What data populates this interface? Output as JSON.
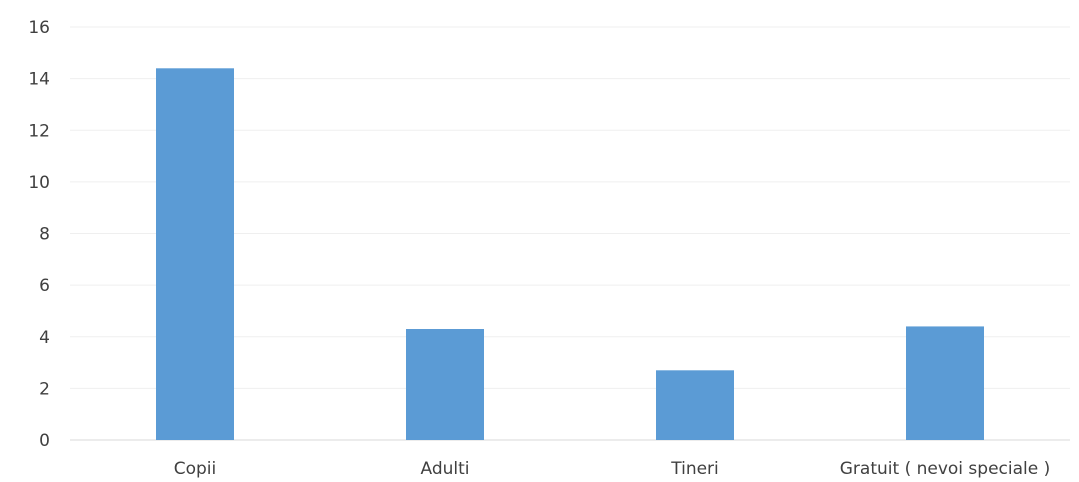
{
  "chart_data": {
    "type": "bar",
    "title": "",
    "xlabel": "",
    "ylabel": "",
    "categories": [
      "Copii",
      "Adulti",
      "Tineri",
      "Gratuit ( nevoi speciale )"
    ],
    "values": [
      14.4,
      4.3,
      2.7,
      4.4
    ],
    "ylim": [
      0,
      16
    ],
    "yticks": [
      0,
      2,
      4,
      6,
      8,
      10,
      12,
      14,
      16
    ],
    "grid": true,
    "legend": "none",
    "bar_color": "#5b9bd5"
  }
}
